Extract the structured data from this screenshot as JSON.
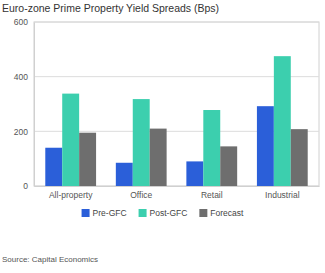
{
  "chart_data": {
    "type": "bar",
    "title": "Euro-zone Prime Property Yield Spreads (Bps)",
    "source": "Source: Capital Economics",
    "categories": [
      "All-property",
      "Office",
      "Retail",
      "Industrial"
    ],
    "series": [
      {
        "name": "Pre-GFC",
        "color": "#2b5fd9",
        "values": [
          140,
          85,
          90,
          292
        ]
      },
      {
        "name": "Post-GFC",
        "color": "#3ccfae",
        "values": [
          338,
          318,
          278,
          475
        ]
      },
      {
        "name": "Forecast",
        "color": "#6e6e6e",
        "values": [
          195,
          210,
          145,
          208
        ]
      }
    ],
    "ylim": [
      0,
      600
    ],
    "yticks": [
      0,
      200,
      400,
      600
    ],
    "grid": true,
    "legend": "bottom"
  }
}
